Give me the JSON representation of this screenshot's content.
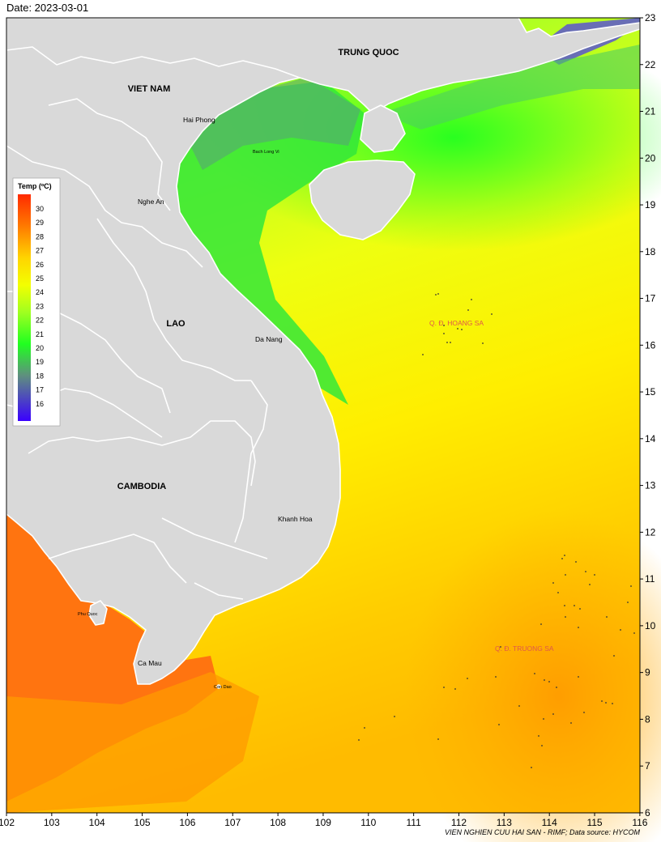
{
  "date_label": "Date: 2023-03-01",
  "credit": "VIEN NGHIEN CUU HAI SAN - RIMF; Data source: HYCOM",
  "x_ticks": [
    "102",
    "103",
    "104",
    "105",
    "106",
    "107",
    "108",
    "109",
    "110",
    "111",
    "112",
    "113",
    "114",
    "115",
    "116"
  ],
  "y_ticks": [
    "23",
    "22",
    "21",
    "20",
    "19",
    "18",
    "17",
    "16",
    "15",
    "14",
    "13",
    "12",
    "11",
    "10",
    "9",
    "8",
    "7",
    "6"
  ],
  "legend": {
    "title": "Temp (ºC)",
    "labels": [
      "30",
      "29",
      "28",
      "27",
      "26",
      "25",
      "24",
      "23",
      "22",
      "21",
      "20",
      "19",
      "18",
      "17",
      "16"
    ],
    "colors": [
      "#ff2a00",
      "#ff7a00",
      "#ffd400",
      "#f3ff00",
      "#a0ff20",
      "#20ff20",
      "#5f8f7f",
      "#3a00ff"
    ]
  },
  "countries": {
    "viet_nam": "VIET NAM",
    "trung_quoc": "TRUNG QUOC",
    "lao": "LAO",
    "cambodia": "CAMBODIA"
  },
  "places": {
    "hai_phong": "Hai Phong",
    "bach_long_vi": "Bach Long Vi",
    "nghe_an": "Nghe An",
    "da_nang": "Da Nang",
    "khanh_hoa": "Khanh Hoa",
    "phu_quoc": "Phu Quoc",
    "ca_mau": "Ca Mau",
    "con_dao": "Con Dao"
  },
  "islands": {
    "hoang_sa": "Q. Đ. HOANG SA",
    "truong_sa": "Q. Đ. TRUONG SA"
  },
  "colors": {
    "land": "#d9d9d9",
    "border": "#ffffff",
    "sea_warm": "#ff7a00",
    "sea_mid": "#f3f300",
    "sea_cool": "#20ff20"
  }
}
